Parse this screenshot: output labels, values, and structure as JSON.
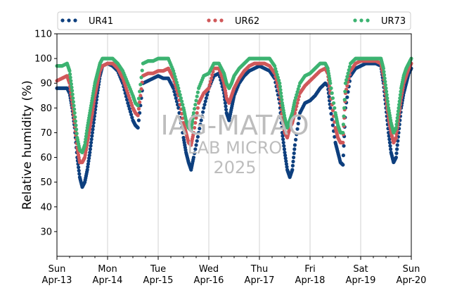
{
  "chart_data": {
    "type": "scatter",
    "ylabel": "Relative humidity (%)",
    "ylim": [
      20,
      110
    ],
    "yticks": [
      30,
      40,
      50,
      60,
      70,
      80,
      90,
      100,
      110
    ],
    "xlim": [
      0,
      7
    ],
    "x_unit": "days since Sun Apr-13 00:00",
    "xticks": [
      {
        "x": 0,
        "day": "Sun",
        "date": "Apr-13"
      },
      {
        "x": 1,
        "day": "Mon",
        "date": "Apr-14"
      },
      {
        "x": 2,
        "day": "Tue",
        "date": "Apr-15"
      },
      {
        "x": 3,
        "day": "Wed",
        "date": "Apr-16"
      },
      {
        "x": 4,
        "day": "Thu",
        "date": "Apr-17"
      },
      {
        "x": 5,
        "day": "Fri",
        "date": "Apr-18"
      },
      {
        "x": 6,
        "day": "Sat",
        "date": "Apr-19"
      },
      {
        "x": 7,
        "day": "Sun",
        "date": "Apr-20"
      }
    ],
    "grid": "vertical",
    "legend_position": "top",
    "watermark": [
      "IAG-MATAO",
      "LAB MICRO",
      "2025"
    ],
    "series": [
      {
        "name": "UR41",
        "color": "#0d3f7e",
        "points": [
          [
            0.0,
            88
          ],
          [
            0.1,
            88
          ],
          [
            0.2,
            88
          ],
          [
            0.25,
            86
          ],
          [
            0.3,
            80
          ],
          [
            0.35,
            72
          ],
          [
            0.4,
            60
          ],
          [
            0.45,
            52
          ],
          [
            0.5,
            48
          ],
          [
            0.55,
            50
          ],
          [
            0.6,
            55
          ],
          [
            0.65,
            62
          ],
          [
            0.7,
            70
          ],
          [
            0.75,
            78
          ],
          [
            0.8,
            86
          ],
          [
            0.85,
            93
          ],
          [
            0.9,
            97
          ],
          [
            1.0,
            98
          ],
          [
            1.1,
            97
          ],
          [
            1.2,
            95
          ],
          [
            1.3,
            90
          ],
          [
            1.4,
            82
          ],
          [
            1.5,
            75
          ],
          [
            1.55,
            73
          ],
          [
            1.6,
            72
          ],
          [
            1.7,
            90
          ],
          [
            1.8,
            91
          ],
          [
            1.9,
            92
          ],
          [
            2.0,
            93
          ],
          [
            2.1,
            92
          ],
          [
            2.2,
            92
          ],
          [
            2.3,
            88
          ],
          [
            2.4,
            80
          ],
          [
            2.5,
            68
          ],
          [
            2.55,
            62
          ],
          [
            2.6,
            58
          ],
          [
            2.65,
            55
          ],
          [
            2.7,
            60
          ],
          [
            2.8,
            70
          ],
          [
            2.9,
            80
          ],
          [
            3.0,
            88
          ],
          [
            3.1,
            93
          ],
          [
            3.2,
            94
          ],
          [
            3.3,
            86
          ],
          [
            3.35,
            78
          ],
          [
            3.4,
            75
          ],
          [
            3.45,
            80
          ],
          [
            3.5,
            85
          ],
          [
            3.6,
            90
          ],
          [
            3.7,
            93
          ],
          [
            3.8,
            95
          ],
          [
            3.9,
            96
          ],
          [
            4.0,
            97
          ],
          [
            4.1,
            96
          ],
          [
            4.2,
            95
          ],
          [
            4.3,
            92
          ],
          [
            4.4,
            82
          ],
          [
            4.45,
            70
          ],
          [
            4.5,
            62
          ],
          [
            4.55,
            55
          ],
          [
            4.6,
            52
          ],
          [
            4.65,
            55
          ],
          [
            4.7,
            65
          ],
          [
            4.8,
            78
          ],
          [
            4.9,
            82
          ],
          [
            5.0,
            83
          ],
          [
            5.1,
            85
          ],
          [
            5.2,
            88
          ],
          [
            5.3,
            90
          ],
          [
            5.35,
            89
          ],
          [
            5.4,
            80
          ],
          [
            5.5,
            66
          ],
          [
            5.55,
            62
          ],
          [
            5.6,
            58
          ],
          [
            5.65,
            57
          ],
          [
            5.7,
            80
          ],
          [
            5.8,
            93
          ],
          [
            5.9,
            96
          ],
          [
            6.0,
            97
          ],
          [
            6.1,
            98
          ],
          [
            6.2,
            98
          ],
          [
            6.3,
            98
          ],
          [
            6.4,
            97
          ],
          [
            6.45,
            90
          ],
          [
            6.5,
            80
          ],
          [
            6.55,
            70
          ],
          [
            6.6,
            62
          ],
          [
            6.65,
            58
          ],
          [
            6.7,
            60
          ],
          [
            6.75,
            70
          ],
          [
            6.8,
            80
          ],
          [
            6.85,
            86
          ],
          [
            6.9,
            90
          ],
          [
            6.95,
            94
          ],
          [
            7.0,
            96
          ]
        ]
      },
      {
        "name": "UR62",
        "color": "#d0585a",
        "points": [
          [
            0.0,
            91
          ],
          [
            0.1,
            92
          ],
          [
            0.2,
            93
          ],
          [
            0.25,
            90
          ],
          [
            0.3,
            82
          ],
          [
            0.35,
            74
          ],
          [
            0.4,
            64
          ],
          [
            0.45,
            58
          ],
          [
            0.5,
            58
          ],
          [
            0.55,
            60
          ],
          [
            0.6,
            66
          ],
          [
            0.65,
            72
          ],
          [
            0.7,
            78
          ],
          [
            0.75,
            85
          ],
          [
            0.8,
            90
          ],
          [
            0.85,
            95
          ],
          [
            0.9,
            97
          ],
          [
            1.0,
            98
          ],
          [
            1.1,
            98
          ],
          [
            1.2,
            96
          ],
          [
            1.3,
            92
          ],
          [
            1.4,
            86
          ],
          [
            1.5,
            80
          ],
          [
            1.55,
            78
          ],
          [
            1.6,
            77
          ],
          [
            1.7,
            93
          ],
          [
            1.8,
            94
          ],
          [
            1.9,
            94
          ],
          [
            2.0,
            95
          ],
          [
            2.1,
            95
          ],
          [
            2.2,
            96
          ],
          [
            2.3,
            92
          ],
          [
            2.4,
            85
          ],
          [
            2.5,
            74
          ],
          [
            2.55,
            70
          ],
          [
            2.6,
            66
          ],
          [
            2.65,
            65
          ],
          [
            2.7,
            70
          ],
          [
            2.8,
            82
          ],
          [
            2.9,
            86
          ],
          [
            3.0,
            88
          ],
          [
            3.1,
            96
          ],
          [
            3.2,
            96
          ],
          [
            3.3,
            90
          ],
          [
            3.35,
            84
          ],
          [
            3.4,
            82
          ],
          [
            3.45,
            85
          ],
          [
            3.5,
            88
          ],
          [
            3.6,
            92
          ],
          [
            3.7,
            95
          ],
          [
            3.8,
            97
          ],
          [
            3.9,
            98
          ],
          [
            4.0,
            98
          ],
          [
            4.1,
            98
          ],
          [
            4.2,
            97
          ],
          [
            4.3,
            94
          ],
          [
            4.4,
            86
          ],
          [
            4.45,
            76
          ],
          [
            4.5,
            70
          ],
          [
            4.55,
            68
          ],
          [
            4.6,
            72
          ],
          [
            4.65,
            74
          ],
          [
            4.7,
            78
          ],
          [
            4.8,
            86
          ],
          [
            4.9,
            89
          ],
          [
            5.0,
            91
          ],
          [
            5.1,
            93
          ],
          [
            5.2,
            95
          ],
          [
            5.3,
            96
          ],
          [
            5.35,
            94
          ],
          [
            5.4,
            86
          ],
          [
            5.5,
            72
          ],
          [
            5.55,
            68
          ],
          [
            5.6,
            66
          ],
          [
            5.65,
            66
          ],
          [
            5.7,
            86
          ],
          [
            5.8,
            95
          ],
          [
            5.9,
            98
          ],
          [
            6.0,
            99
          ],
          [
            6.1,
            99
          ],
          [
            6.2,
            99
          ],
          [
            6.3,
            99
          ],
          [
            6.4,
            98
          ],
          [
            6.45,
            93
          ],
          [
            6.5,
            84
          ],
          [
            6.55,
            76
          ],
          [
            6.6,
            70
          ],
          [
            6.65,
            66
          ],
          [
            6.7,
            68
          ],
          [
            6.75,
            76
          ],
          [
            6.8,
            84
          ],
          [
            6.85,
            90
          ],
          [
            6.9,
            93
          ],
          [
            6.95,
            96
          ],
          [
            7.0,
            98
          ]
        ]
      },
      {
        "name": "UR73",
        "color": "#3cb371",
        "points": [
          [
            0.0,
            97
          ],
          [
            0.1,
            97
          ],
          [
            0.2,
            98
          ],
          [
            0.25,
            95
          ],
          [
            0.3,
            87
          ],
          [
            0.35,
            78
          ],
          [
            0.4,
            68
          ],
          [
            0.45,
            63
          ],
          [
            0.5,
            62
          ],
          [
            0.55,
            65
          ],
          [
            0.6,
            72
          ],
          [
            0.65,
            78
          ],
          [
            0.7,
            84
          ],
          [
            0.75,
            90
          ],
          [
            0.8,
            94
          ],
          [
            0.85,
            98
          ],
          [
            0.9,
            100
          ],
          [
            1.0,
            100
          ],
          [
            1.1,
            100
          ],
          [
            1.2,
            98
          ],
          [
            1.3,
            95
          ],
          [
            1.4,
            90
          ],
          [
            1.5,
            85
          ],
          [
            1.55,
            82
          ],
          [
            1.6,
            81
          ],
          [
            1.7,
            98
          ],
          [
            1.8,
            99
          ],
          [
            1.9,
            99
          ],
          [
            2.0,
            100
          ],
          [
            2.1,
            100
          ],
          [
            2.2,
            100
          ],
          [
            2.3,
            95
          ],
          [
            2.4,
            88
          ],
          [
            2.5,
            80
          ],
          [
            2.55,
            75
          ],
          [
            2.6,
            72
          ],
          [
            2.65,
            71
          ],
          [
            2.7,
            78
          ],
          [
            2.8,
            88
          ],
          [
            2.9,
            93
          ],
          [
            3.0,
            94
          ],
          [
            3.1,
            98
          ],
          [
            3.2,
            98
          ],
          [
            3.3,
            94
          ],
          [
            3.35,
            90
          ],
          [
            3.4,
            88
          ],
          [
            3.45,
            90
          ],
          [
            3.5,
            93
          ],
          [
            3.6,
            96
          ],
          [
            3.7,
            98
          ],
          [
            3.8,
            100
          ],
          [
            3.9,
            100
          ],
          [
            4.0,
            100
          ],
          [
            4.1,
            100
          ],
          [
            4.2,
            100
          ],
          [
            4.3,
            97
          ],
          [
            4.4,
            90
          ],
          [
            4.45,
            82
          ],
          [
            4.5,
            76
          ],
          [
            4.55,
            72
          ],
          [
            4.6,
            75
          ],
          [
            4.65,
            78
          ],
          [
            4.7,
            83
          ],
          [
            4.8,
            90
          ],
          [
            4.9,
            93
          ],
          [
            5.0,
            94
          ],
          [
            5.1,
            96
          ],
          [
            5.2,
            98
          ],
          [
            5.3,
            98
          ],
          [
            5.35,
            96
          ],
          [
            5.4,
            90
          ],
          [
            5.5,
            78
          ],
          [
            5.55,
            73
          ],
          [
            5.6,
            70
          ],
          [
            5.65,
            70
          ],
          [
            5.7,
            90
          ],
          [
            5.8,
            98
          ],
          [
            5.9,
            100
          ],
          [
            6.0,
            100
          ],
          [
            6.1,
            100
          ],
          [
            6.2,
            100
          ],
          [
            6.3,
            100
          ],
          [
            6.4,
            100
          ],
          [
            6.45,
            96
          ],
          [
            6.5,
            88
          ],
          [
            6.55,
            80
          ],
          [
            6.6,
            74
          ],
          [
            6.65,
            70
          ],
          [
            6.7,
            72
          ],
          [
            6.75,
            80
          ],
          [
            6.8,
            88
          ],
          [
            6.85,
            93
          ],
          [
            6.9,
            96
          ],
          [
            6.95,
            98
          ],
          [
            7.0,
            100
          ]
        ]
      }
    ]
  }
}
